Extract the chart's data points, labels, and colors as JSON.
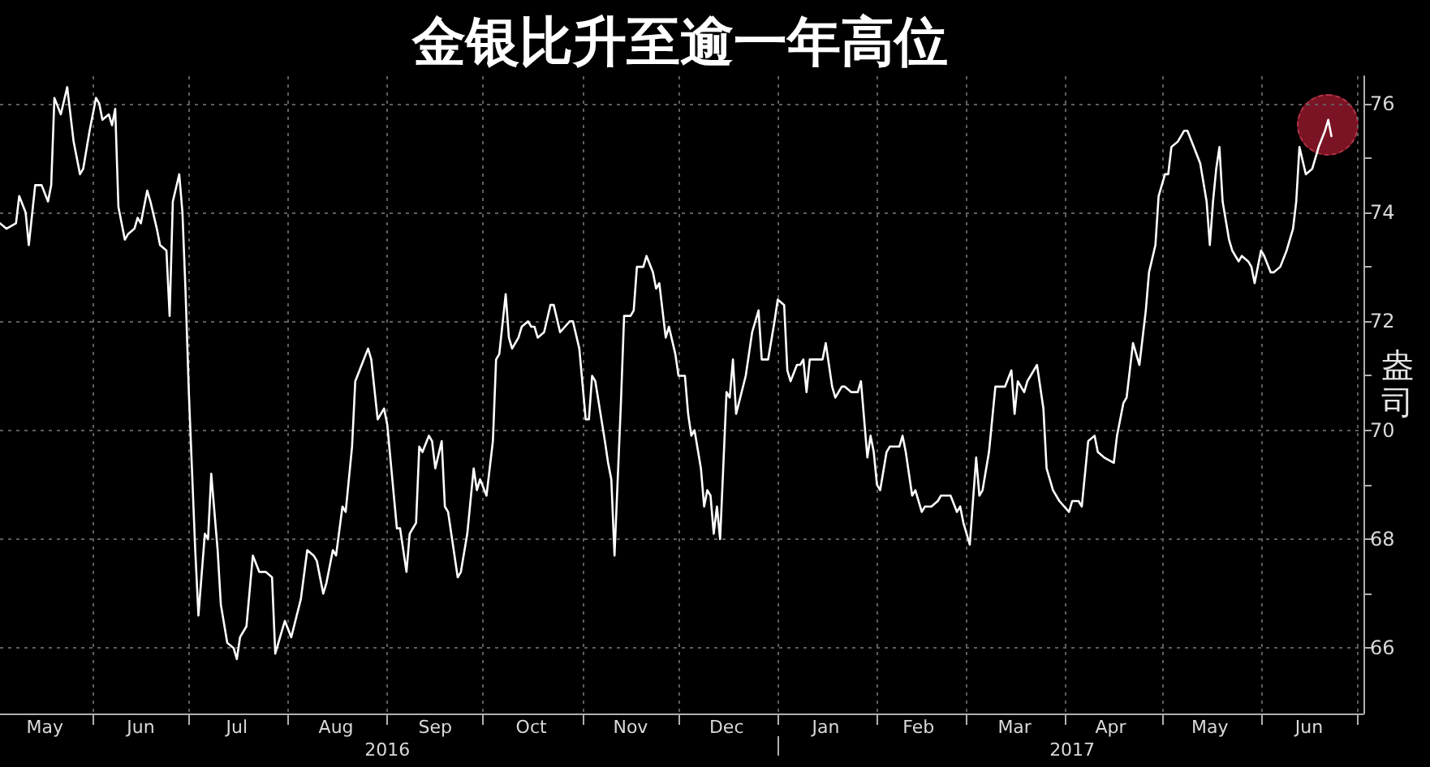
{
  "chart_data": {
    "type": "line",
    "title": "金银比升至逾一年高位",
    "ylabel": "盎司",
    "color": "#ffffff",
    "grid": true,
    "xlim": [
      "2016-05-03",
      "2017-07-03"
    ],
    "xticks": [
      {
        "value": "2016-05-17",
        "label": "May"
      },
      {
        "value": "2016-06-01",
        "label": null
      },
      {
        "value": "2016-06-16",
        "label": "Jun"
      },
      {
        "value": "2016-07-01",
        "label": null
      },
      {
        "value": "2016-07-16",
        "label": "Jul"
      },
      {
        "value": "2016-08-01",
        "label": null
      },
      {
        "value": "2016-08-16",
        "label": "Aug"
      },
      {
        "value": "2016-09-01",
        "label": null
      },
      {
        "value": "2016-09-16",
        "label": "Sep"
      },
      {
        "value": "2016-10-01",
        "label": null
      },
      {
        "value": "2016-10-16",
        "label": "Oct"
      },
      {
        "value": "2016-11-01",
        "label": null
      },
      {
        "value": "2016-11-16",
        "label": "Nov"
      },
      {
        "value": "2016-12-01",
        "label": null
      },
      {
        "value": "2016-12-16",
        "label": "Dec"
      },
      {
        "value": "2017-01-01",
        "label": null
      },
      {
        "value": "2017-01-16",
        "label": "Jan"
      },
      {
        "value": "2017-02-01",
        "label": null
      },
      {
        "value": "2017-02-14",
        "label": "Feb"
      },
      {
        "value": "2017-03-01",
        "label": null
      },
      {
        "value": "2017-03-16",
        "label": "Mar"
      },
      {
        "value": "2017-04-01",
        "label": null
      },
      {
        "value": "2017-04-15",
        "label": "Apr"
      },
      {
        "value": "2017-05-01",
        "label": null
      },
      {
        "value": "2017-05-16",
        "label": "May"
      },
      {
        "value": "2017-06-01",
        "label": null
      },
      {
        "value": "2017-06-16",
        "label": "Jun"
      },
      {
        "value": "2017-07-01",
        "label": null
      }
    ],
    "x2lim": [
      "2016-05-03",
      "2017-07-03"
    ],
    "x2ticks": [
      {
        "value": "2016-09-01",
        "label": "2016"
      },
      {
        "value": "2017-01-01",
        "label": null
      },
      {
        "value": "2017-04-03",
        "label": "2017"
      }
    ],
    "ylim": [
      64.8,
      76.5
    ],
    "yticks": [
      66,
      {
        "value": 67,
        "label": null
      },
      68,
      {
        "value": 69,
        "label": null
      },
      70,
      {
        "value": 71,
        "label": null
      },
      72,
      {
        "value": 73,
        "label": null
      },
      74,
      {
        "value": 75,
        "label": null
      },
      76
    ],
    "x": [
      "2016-05-03",
      "2016-05-05",
      "2016-05-08",
      "2016-05-09",
      "2016-05-11",
      "2016-05-12",
      "2016-05-14",
      "2016-05-16",
      "2016-05-18",
      "2016-05-19",
      "2016-05-20",
      "2016-05-22",
      "2016-05-24",
      "2016-05-26",
      "2016-05-28",
      "2016-05-29",
      "2016-05-31",
      "2016-06-02",
      "2016-06-03",
      "2016-06-04",
      "2016-06-06",
      "2016-06-07",
      "2016-06-08",
      "2016-06-09",
      "2016-06-11",
      "2016-06-12",
      "2016-06-14",
      "2016-06-15",
      "2016-06-16",
      "2016-06-18",
      "2016-06-19",
      "2016-06-21",
      "2016-06-22",
      "2016-06-24",
      "2016-06-25",
      "2016-06-26",
      "2016-06-28",
      "2016-06-29",
      "2016-06-30",
      "2016-07-01",
      "2016-07-03",
      "2016-07-04",
      "2016-07-06",
      "2016-07-07",
      "2016-07-08",
      "2016-07-10",
      "2016-07-11",
      "2016-07-13",
      "2016-07-15",
      "2016-07-16",
      "2016-07-17",
      "2016-07-19",
      "2016-07-21",
      "2016-07-23",
      "2016-07-25",
      "2016-07-27",
      "2016-07-28",
      "2016-07-30",
      "2016-07-31",
      "2016-08-02",
      "2016-08-05",
      "2016-08-07",
      "2016-08-09",
      "2016-08-10",
      "2016-08-12",
      "2016-08-13",
      "2016-08-15",
      "2016-08-16",
      "2016-08-18",
      "2016-08-19",
      "2016-08-21",
      "2016-08-22",
      "2016-08-24",
      "2016-08-26",
      "2016-08-27",
      "2016-08-29",
      "2016-08-31",
      "2016-09-01",
      "2016-09-04",
      "2016-09-05",
      "2016-09-07",
      "2016-09-08",
      "2016-09-10",
      "2016-09-11",
      "2016-09-12",
      "2016-09-14",
      "2016-09-15",
      "2016-09-16",
      "2016-09-18",
      "2016-09-19",
      "2016-09-20",
      "2016-09-23",
      "2016-09-24",
      "2016-09-26",
      "2016-09-28",
      "2016-09-29",
      "2016-09-30",
      "2016-10-02",
      "2016-10-04",
      "2016-10-05",
      "2016-10-06",
      "2016-10-08",
      "2016-10-09",
      "2016-10-10",
      "2016-10-12",
      "2016-10-13",
      "2016-10-15",
      "2016-10-16",
      "2016-10-17",
      "2016-10-18",
      "2016-10-20",
      "2016-10-22",
      "2016-10-23",
      "2016-10-25",
      "2016-10-28",
      "2016-10-29",
      "2016-10-31",
      "2016-11-02",
      "2016-11-03",
      "2016-11-04",
      "2016-11-05",
      "2016-11-08",
      "2016-11-09",
      "2016-11-10",
      "2016-11-11",
      "2016-11-13",
      "2016-11-14",
      "2016-11-16",
      "2016-11-17",
      "2016-11-18",
      "2016-11-20",
      "2016-11-21",
      "2016-11-23",
      "2016-11-24",
      "2016-11-25",
      "2016-11-27",
      "2016-11-28",
      "2016-11-30",
      "2016-12-01",
      "2016-12-03",
      "2016-12-04",
      "2016-12-05",
      "2016-12-06",
      "2016-12-08",
      "2016-12-09",
      "2016-12-10",
      "2016-12-11",
      "2016-12-12",
      "2016-12-13",
      "2016-12-14",
      "2016-12-16",
      "2016-12-17",
      "2016-12-18",
      "2016-12-19",
      "2016-12-22",
      "2016-12-24",
      "2016-12-26",
      "2016-12-27",
      "2016-12-29",
      "2016-12-31",
      "2017-01-01",
      "2017-01-03",
      "2017-01-04",
      "2017-01-05",
      "2017-01-07",
      "2017-01-08",
      "2017-01-09",
      "2017-01-10",
      "2017-01-11",
      "2017-01-13",
      "2017-01-15",
      "2017-01-16",
      "2017-01-18",
      "2017-01-19",
      "2017-01-21",
      "2017-01-22",
      "2017-01-24",
      "2017-01-26",
      "2017-01-27",
      "2017-01-29",
      "2017-01-30",
      "2017-01-31",
      "2017-02-01",
      "2017-02-02",
      "2017-02-04",
      "2017-02-05",
      "2017-02-08",
      "2017-02-09",
      "2017-02-10",
      "2017-02-12",
      "2017-02-13",
      "2017-02-15",
      "2017-02-16",
      "2017-02-18",
      "2017-02-20",
      "2017-02-21",
      "2017-02-23",
      "2017-02-24",
      "2017-02-26",
      "2017-02-27",
      "2017-02-28",
      "2017-03-02",
      "2017-03-04",
      "2017-03-05",
      "2017-03-06",
      "2017-03-08",
      "2017-03-10",
      "2017-03-12",
      "2017-03-13",
      "2017-03-15",
      "2017-03-16",
      "2017-03-17",
      "2017-03-19",
      "2017-03-20",
      "2017-03-22",
      "2017-03-23",
      "2017-03-25",
      "2017-03-26",
      "2017-03-28",
      "2017-03-30",
      "2017-04-02",
      "2017-04-03",
      "2017-04-05",
      "2017-04-06",
      "2017-04-08",
      "2017-04-10",
      "2017-04-11",
      "2017-04-13",
      "2017-04-16",
      "2017-04-17",
      "2017-04-19",
      "2017-04-20",
      "2017-04-22",
      "2017-04-24",
      "2017-04-26",
      "2017-04-27",
      "2017-04-29",
      "2017-04-30",
      "2017-05-02",
      "2017-05-03",
      "2017-05-04",
      "2017-05-06",
      "2017-05-08",
      "2017-05-09",
      "2017-05-11",
      "2017-05-13",
      "2017-05-15",
      "2017-05-16",
      "2017-05-17",
      "2017-05-18",
      "2017-05-19",
      "2017-05-20",
      "2017-05-22",
      "2017-05-23",
      "2017-05-25",
      "2017-05-26",
      "2017-05-28",
      "2017-05-29",
      "2017-05-30",
      "2017-06-01",
      "2017-06-02",
      "2017-06-04",
      "2017-06-05",
      "2017-06-07",
      "2017-06-09",
      "2017-06-11",
      "2017-06-12",
      "2017-06-13",
      "2017-06-15",
      "2017-06-17",
      "2017-06-19",
      "2017-06-21",
      "2017-06-22",
      "2017-06-23"
    ],
    "values": [
      73.8,
      73.7,
      73.8,
      74.3,
      74.0,
      73.4,
      74.5,
      74.5,
      74.2,
      74.5,
      76.1,
      75.8,
      76.3,
      75.3,
      74.7,
      74.8,
      75.5,
      76.1,
      76.0,
      75.7,
      75.8,
      75.6,
      75.9,
      74.1,
      73.5,
      73.6,
      73.7,
      73.9,
      73.8,
      74.4,
      74.2,
      73.7,
      73.4,
      73.3,
      72.1,
      74.2,
      74.7,
      74.0,
      72.5,
      70.7,
      67.8,
      66.6,
      68.1,
      68.0,
      69.2,
      67.8,
      66.8,
      66.1,
      66.0,
      65.8,
      66.2,
      66.4,
      67.7,
      67.4,
      67.4,
      67.3,
      65.9,
      66.3,
      66.5,
      66.2,
      66.9,
      67.8,
      67.7,
      67.6,
      67.0,
      67.2,
      67.8,
      67.7,
      68.6,
      68.5,
      69.7,
      70.9,
      71.2,
      71.5,
      71.3,
      70.2,
      70.4,
      70.1,
      68.2,
      68.2,
      67.4,
      68.1,
      68.3,
      69.7,
      69.6,
      69.9,
      69.8,
      69.3,
      69.8,
      68.6,
      68.5,
      67.3,
      67.4,
      68.1,
      69.3,
      68.9,
      69.1,
      68.8,
      69.8,
      71.3,
      71.4,
      72.5,
      71.7,
      71.5,
      71.7,
      71.9,
      72.0,
      71.9,
      71.9,
      71.7,
      71.8,
      72.3,
      72.3,
      71.8,
      72.0,
      72.0,
      71.5,
      70.2,
      70.2,
      71.0,
      70.9,
      69.8,
      69.4,
      69.1,
      67.7,
      70.5,
      72.1,
      72.1,
      72.2,
      73.0,
      73.0,
      73.2,
      72.9,
      72.6,
      72.7,
      71.7,
      71.9,
      71.4,
      71.0,
      71.0,
      70.3,
      69.9,
      70.0,
      69.3,
      68.6,
      68.9,
      68.8,
      68.1,
      68.6,
      68.0,
      70.7,
      70.6,
      71.3,
      70.3,
      71.0,
      71.8,
      72.2,
      71.3,
      71.3,
      72.0,
      72.4,
      72.3,
      71.1,
      70.9,
      71.2,
      71.2,
      71.3,
      70.7,
      71.3,
      71.3,
      71.3,
      71.6,
      70.8,
      70.6,
      70.8,
      70.8,
      70.7,
      70.7,
      70.9,
      69.5,
      69.9,
      69.6,
      69.0,
      68.9,
      69.6,
      69.7,
      69.7,
      69.9,
      69.6,
      68.8,
      68.9,
      68.5,
      68.6,
      68.6,
      68.7,
      68.8,
      68.8,
      68.8,
      68.5,
      68.6,
      68.3,
      67.9,
      69.5,
      68.8,
      68.9,
      69.6,
      70.8,
      70.8,
      70.8,
      71.1,
      70.3,
      70.9,
      70.7,
      70.9,
      71.1,
      71.2,
      70.4,
      69.3,
      68.9,
      68.7,
      68.5,
      68.7,
      68.7,
      68.6,
      69.8,
      69.9,
      69.6,
      69.5,
      69.4,
      69.9,
      70.5,
      70.6,
      71.6,
      71.2,
      72.2,
      72.9,
      73.4,
      74.3,
      74.7,
      74.7,
      75.2,
      75.3,
      75.5,
      75.5,
      75.2,
      74.9,
      74.2,
      73.4,
      74.2,
      74.8,
      75.2,
      74.2,
      73.5,
      73.3,
      73.1,
      73.2,
      73.1,
      73.0,
      72.7,
      73.3,
      73.2,
      72.9,
      72.9,
      73.0,
      73.3,
      73.7,
      74.2,
      75.2,
      74.7,
      74.8,
      75.2,
      75.5,
      75.7,
      75.4
    ]
  }
}
